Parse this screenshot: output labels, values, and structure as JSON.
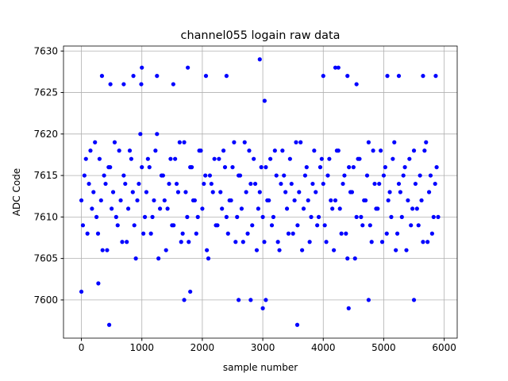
{
  "chart_data": {
    "type": "scatter",
    "title": "channel055 logain raw data",
    "x_label": "sample number",
    "y_label": "ADC Code",
    "color": "#0000ff",
    "grid": true,
    "xlim": [
      -296,
      6215
    ],
    "ylim": [
      7595.4,
      7630.6
    ],
    "xticks": [
      0,
      1000,
      2000,
      3000,
      4000,
      5000,
      6000
    ],
    "yticks": [
      7600,
      7605,
      7610,
      7615,
      7620,
      7625,
      7630
    ],
    "x": [
      0,
      50,
      100,
      150,
      200,
      250,
      300,
      350,
      400,
      450,
      500,
      550,
      600,
      650,
      700,
      750,
      800,
      850,
      900,
      950,
      1000,
      1050,
      1100,
      1150,
      1200,
      1250,
      1300,
      1350,
      1400,
      1450,
      1500,
      1550,
      1600,
      1650,
      1700,
      1750,
      1800,
      1850,
      1900,
      1950,
      2000,
      2050,
      2100,
      2150,
      2200,
      2250,
      2300,
      2350,
      2400,
      2450,
      2500,
      2550,
      2600,
      2650,
      2700,
      2750,
      2800,
      2850,
      2900,
      2950,
      3000,
      3050,
      3100,
      3150,
      3200,
      3250,
      3300,
      3350,
      3400,
      3450,
      3500,
      3550,
      3600,
      3650,
      3700,
      3750,
      3800,
      3850,
      3900,
      3950,
      4000,
      4050,
      4100,
      4150,
      4200,
      4250,
      4300,
      4350,
      4400,
      4450,
      4500,
      4550,
      4600,
      4650,
      4700,
      4750,
      4800,
      4850,
      4900,
      4950,
      5000,
      5050,
      5100,
      5150,
      5200,
      5250,
      5300,
      5350,
      5400,
      5450,
      5500,
      5550,
      5600,
      5650,
      5700,
      5750,
      5800,
      5850,
      5900,
      25,
      75,
      125,
      175,
      225,
      275,
      325,
      375,
      425,
      475,
      525,
      575,
      625,
      675,
      725,
      775,
      825,
      875,
      925,
      975,
      1025,
      1075,
      1125,
      1175,
      1225,
      1275,
      1325,
      1375,
      1425,
      1475,
      1525,
      1575,
      1625,
      1675,
      1725,
      1775,
      1825,
      1875,
      1925,
      1975,
      2025,
      2075,
      2125,
      2175,
      2225,
      2275,
      2325,
      2375,
      2425,
      2475,
      2525,
      2575,
      2625,
      2675,
      2725,
      2775,
      2825,
      2875,
      2925,
      2975,
      3025,
      3075,
      3125,
      3175,
      3225,
      3275,
      3325,
      3375,
      3425,
      3475,
      3525,
      3575,
      3625,
      3675,
      3725,
      3775,
      3825,
      3875,
      3925,
      3975,
      4025,
      4075,
      4125,
      4175,
      4225,
      4275,
      4325,
      4375,
      4425,
      4475,
      4525,
      4575,
      4625,
      4675,
      4725,
      4775,
      4825,
      4875,
      4925,
      4975,
      5025,
      5075,
      5125,
      5175,
      5225,
      5275,
      5325,
      5375,
      5425,
      5475,
      5525,
      5575,
      5625,
      5675,
      5725,
      5775,
      5825,
      5875,
      0,
      280,
      340,
      460,
      480,
      700,
      860,
      990,
      1000,
      1250,
      1520,
      1700,
      1760,
      1800,
      2060,
      2400,
      2600,
      2800,
      2950,
      3000,
      3030,
      3050,
      3570,
      4000,
      4200,
      4250,
      4400,
      4420,
      4550,
      4750,
      5060,
      5250,
      5500,
      5650,
      5860
    ],
    "y": [
      7612,
      7615,
      7608,
      7618,
      7613,
      7610,
      7617,
      7606,
      7614,
      7616,
      7611,
      7619,
      7609,
      7612,
      7615,
      7607,
      7618,
      7613,
      7605,
      7614,
      7616,
      7610,
      7617,
      7608,
      7612,
      7620,
      7611,
      7615,
      7606,
      7614,
      7609,
      7617,
      7613,
      7607,
      7619,
      7610,
      7616,
      7612,
      7608,
      7618,
      7611,
      7615,
      7605,
      7614,
      7617,
      7609,
      7613,
      7618,
      7610,
      7612,
      7616,
      7607,
      7615,
      7611,
      7619,
      7608,
      7614,
      7617,
      7606,
      7613,
      7610,
      7616,
      7612,
      7609,
      7618,
      7607,
      7614,
      7615,
      7611,
      7617,
      7608,
      7619,
      7613,
      7606,
      7615,
      7612,
      7610,
      7618,
      7609,
      7616,
      7614,
      7607,
      7617,
      7611,
      7612,
      7618,
      7608,
      7615,
      7605,
      7613,
      7616,
      7610,
      7617,
      7609,
      7612,
      7619,
      7607,
      7614,
      7611,
      7618,
      7615,
      7608,
      7613,
      7617,
      7606,
      7614,
      7610,
      7616,
      7612,
      7609,
      7618,
      7611,
      7615,
      7607,
      7619,
      7613,
      7608,
      7614,
      7610,
      7609,
      7617,
      7614,
      7611,
      7619,
      7608,
      7612,
      7615,
      7606,
      7616,
      7613,
      7610,
      7618,
      7607,
      7614,
      7611,
      7617,
      7609,
      7612,
      7620,
      7608,
      7613,
      7616,
      7610,
      7618,
      7605,
      7615,
      7612,
      7611,
      7617,
      7609,
      7614,
      7619,
      7608,
      7613,
      7607,
      7616,
      7612,
      7610,
      7618,
      7614,
      7606,
      7615,
      7613,
      7609,
      7617,
      7611,
      7616,
      7608,
      7612,
      7619,
      7610,
      7615,
      7607,
      7613,
      7618,
      7609,
      7614,
      7611,
      7616,
      7607,
      7612,
      7617,
      7610,
      7615,
      7606,
      7618,
      7613,
      7608,
      7614,
      7612,
      7609,
      7619,
      7611,
      7616,
      7607,
      7614,
      7613,
      7610,
      7617,
      7609,
      7615,
      7612,
      7606,
      7618,
      7611,
      7614,
      7608,
      7616,
      7613,
      7605,
      7617,
      7610,
      7612,
      7615,
      7609,
      7618,
      7611,
      7614,
      7607,
      7616,
      7612,
      7610,
      7619,
      7608,
      7613,
      7615,
      7606,
      7617,
      7611,
      7614,
      7609,
      7612,
      7618,
      7607,
      7615,
      7610,
      7616,
      7601,
      7602,
      7627,
      7597,
      7626,
      7626,
      7627,
      7626,
      7628,
      7627,
      7626,
      7600,
      7628,
      7601,
      7627,
      7627,
      7600,
      7600,
      7629,
      7599,
      7624,
      7600,
      7597,
      7627,
      7628,
      7628,
      7627,
      7599,
      7626,
      7600,
      7627,
      7627,
      7600,
      7627,
      7627
    ]
  }
}
